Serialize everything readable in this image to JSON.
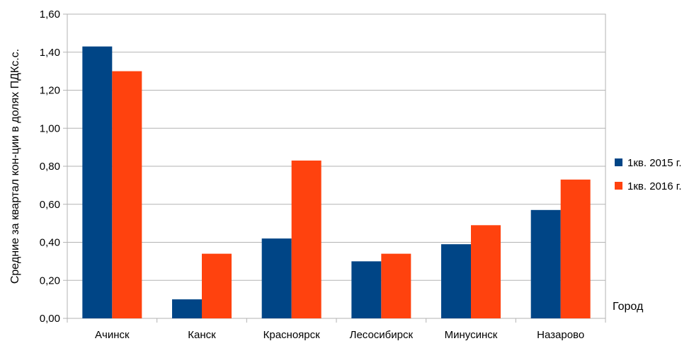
{
  "chart_data": {
    "type": "bar",
    "title": "",
    "xlabel": "Город",
    "ylabel": "Средние за квартал кон-ции в долях ПДКс.с.",
    "categories": [
      "Ачинск",
      "Канск",
      "Красноярск",
      "Лесосибирск",
      "Минусинск",
      "Назарово"
    ],
    "series": [
      {
        "name": "1кв. 2015 г.",
        "color": "#004586",
        "values": [
          1.43,
          0.1,
          0.42,
          0.3,
          0.39,
          0.57
        ]
      },
      {
        "name": "1кв. 2016 г.",
        "color": "#ff420e",
        "values": [
          1.3,
          0.34,
          0.83,
          0.34,
          0.49,
          0.73
        ]
      }
    ],
    "ylim": [
      0,
      1.6
    ],
    "yticks": [
      "0,00",
      "0,20",
      "0,40",
      "0,60",
      "0,80",
      "1,00",
      "1,20",
      "1,40",
      "1,60"
    ],
    "grid": true,
    "legend": "right"
  }
}
